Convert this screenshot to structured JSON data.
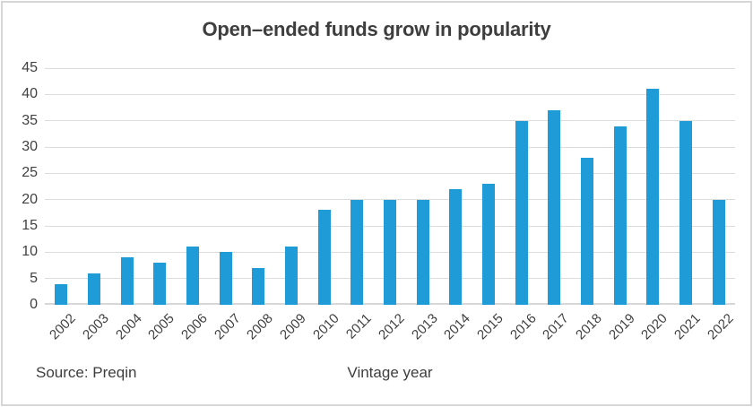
{
  "colors": {
    "bar": "#1f9cd8",
    "grid": "#dcdcdc",
    "axis_line": "#d7d7d7",
    "text": "#404040",
    "title_text": "#3e3e3e",
    "frame": "#d6d6d6"
  },
  "chart_data": {
    "type": "bar",
    "title": "Open–ended funds grow in popularity",
    "xlabel": "Vintage year",
    "ylabel": "",
    "source": "Source: Preqin",
    "categories": [
      "2002",
      "2003",
      "2004",
      "2005",
      "2006",
      "2007",
      "2008",
      "2009",
      "2010",
      "2011",
      "2012",
      "2013",
      "2014",
      "2015",
      "2016",
      "2017",
      "2018",
      "2019",
      "2020",
      "2021",
      "2022"
    ],
    "values": [
      4,
      6,
      9,
      8,
      11,
      10,
      7,
      11,
      18,
      20,
      20,
      20,
      22,
      23,
      35,
      37,
      28,
      34,
      41,
      35,
      20
    ],
    "ylim": [
      0,
      45
    ],
    "yticks": [
      0,
      5,
      10,
      15,
      20,
      25,
      30,
      35,
      40,
      45
    ],
    "grid": "horizontal",
    "legend": "none",
    "x_tick_rotation": 45
  }
}
